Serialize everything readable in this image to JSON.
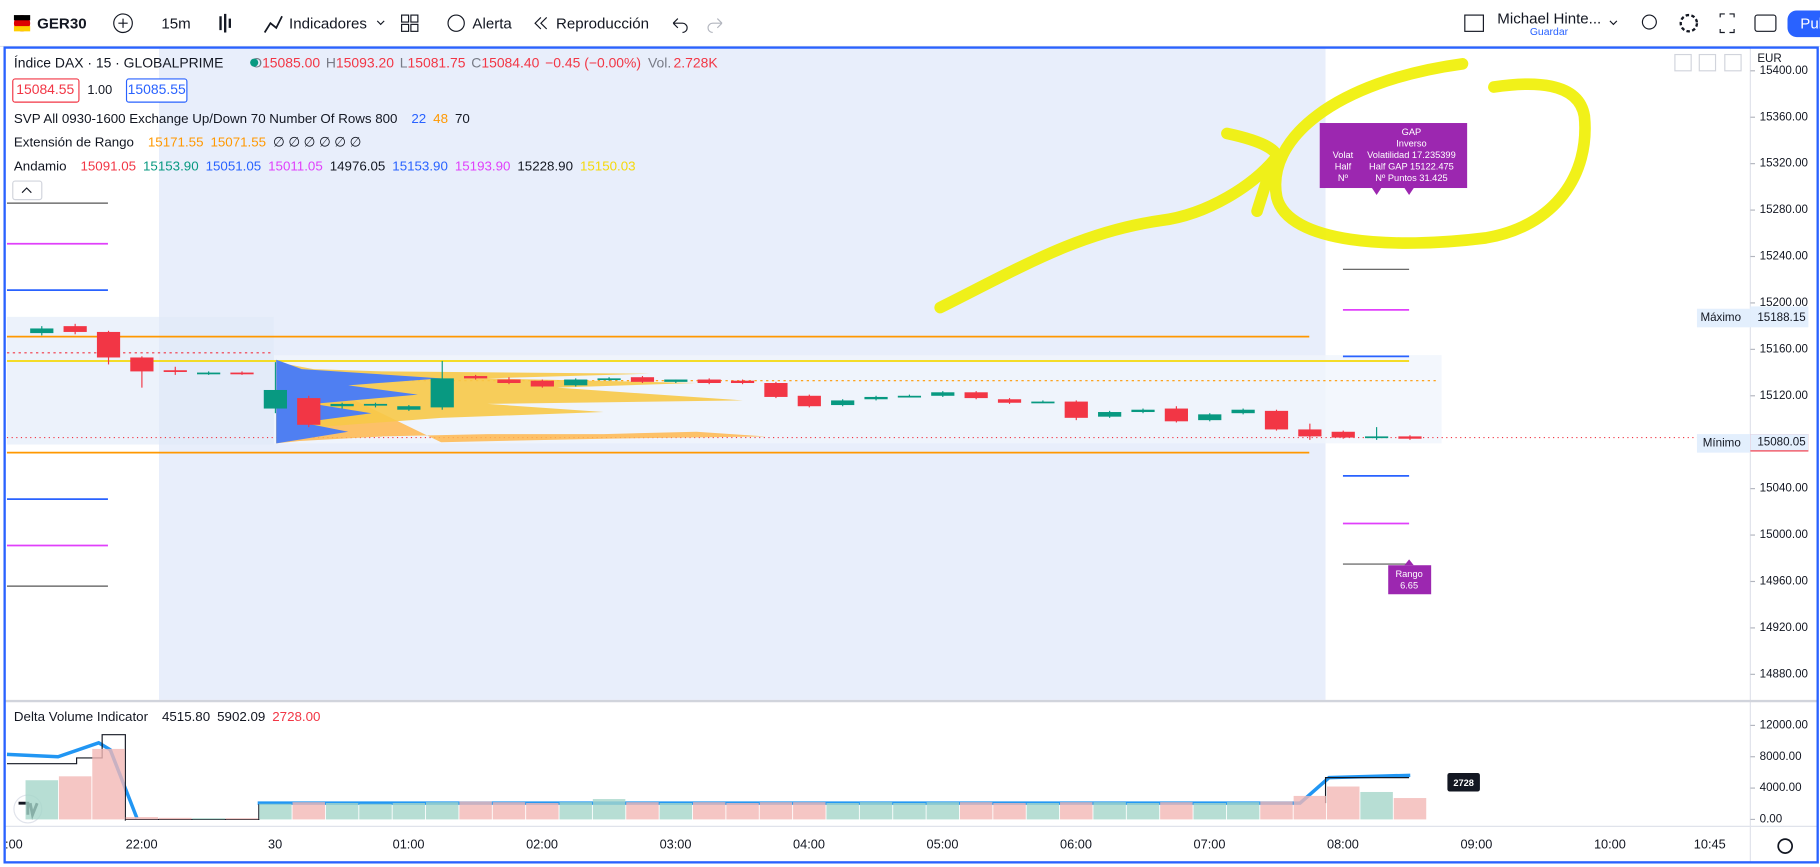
{
  "toolbar": {
    "symbol": "GER30",
    "interval": "15m",
    "indicators": "Indicadores",
    "alert": "Alerta",
    "replay": "Reproducción",
    "user": "Michael Hinte...",
    "save": "Guardar",
    "publish": "Pub"
  },
  "legend": {
    "title": "Índice DAX · 15 · GLOBALPRIME",
    "ohlc": [
      {
        "label": "O",
        "value": "15085.00"
      },
      {
        "label": "H",
        "value": "15093.20"
      },
      {
        "label": "L",
        "value": "15081.75"
      },
      {
        "label": "C",
        "value": "15084.40"
      }
    ],
    "change": "−0.45 (−0.00%)",
    "volume_label": "Vol.",
    "volume": "2.728K",
    "bid": "15084.55",
    "spread": "1.00",
    "ask": "15085.55",
    "svp": {
      "name": "SVP All 0930-1600 Exchange Up/Down 70 Number Of Rows 800",
      "values": [
        {
          "text": "22",
          "color": "#2962ff"
        },
        {
          "text": "48",
          "color": "#ff9800"
        },
        {
          "text": "70",
          "color": "#131722"
        }
      ]
    },
    "range_ext": {
      "name": "Extensión de Rango",
      "values": [
        {
          "text": "15171.55",
          "color": "#ff9800"
        },
        {
          "text": "15071.55",
          "color": "#ff9800"
        },
        {
          "text": "∅ ∅ ∅ ∅ ∅ ∅",
          "color": "#131722"
        }
      ]
    },
    "andamio": {
      "name": "Andamio",
      "values": [
        {
          "text": "15091.05",
          "color": "#f23645"
        },
        {
          "text": "15153.90",
          "color": "#089981"
        },
        {
          "text": "15051.05",
          "color": "#2962ff"
        },
        {
          "text": "15011.05",
          "color": "#e040fb"
        },
        {
          "text": "14976.05",
          "color": "#131722"
        },
        {
          "text": "15153.90",
          "color": "#2962ff"
        },
        {
          "text": "15193.90",
          "color": "#e040fb"
        },
        {
          "text": "15228.90",
          "color": "#131722"
        },
        {
          "text": "15150.03",
          "color": "#f5d90a"
        }
      ]
    }
  },
  "currency": "EUR",
  "price_axis": {
    "ylim": [
      14852,
      15418
    ],
    "yticks": [
      {
        "value": 15400,
        "label": "15400.00"
      },
      {
        "value": 15360,
        "label": "15360.00"
      },
      {
        "value": 15320,
        "label": "15320.00"
      },
      {
        "value": 15280,
        "label": "15280.00"
      },
      {
        "value": 15240,
        "label": "15240.00"
      },
      {
        "value": 15200,
        "label": "15200.00"
      },
      {
        "value": 15160,
        "label": "15160.00"
      },
      {
        "value": 15120,
        "label": "15120.00"
      },
      {
        "value": 15040,
        "label": "15040.00"
      },
      {
        "value": 15000,
        "label": "15000.00"
      },
      {
        "value": 14960,
        "label": "14960.00"
      },
      {
        "value": 14920,
        "label": "14920.00"
      },
      {
        "value": 14880,
        "label": "14880.00"
      }
    ]
  },
  "price_labels": {
    "max_label": "Máximo",
    "max": {
      "value": 15188.15,
      "label": "15188.15"
    },
    "min_label": "Mínimo",
    "min": {
      "value": 15080.05,
      "label": "15080.05"
    }
  },
  "candles": [
    [
      15174,
      15180,
      15172,
      15178
    ],
    [
      15180,
      15182,
      15173,
      15175
    ],
    [
      15175,
      15176,
      15147,
      15153
    ],
    [
      15153,
      15154,
      15127,
      15141
    ],
    [
      15142,
      15145,
      15138,
      15141
    ],
    [
      15139,
      15141,
      15138,
      15140
    ],
    [
      15140,
      15141,
      15138,
      15139
    ],
    [
      15109,
      15149,
      15105,
      15125
    ],
    [
      15118,
      15120,
      15093,
      15095
    ],
    [
      15111,
      15114,
      15109,
      15113
    ],
    [
      15112,
      15114,
      15110,
      15113
    ],
    [
      15108,
      15112,
      15107,
      15111
    ],
    [
      15110,
      15150,
      15108,
      15135
    ],
    [
      15137,
      15138,
      15134,
      15135
    ],
    [
      15134,
      15136,
      15130,
      15131
    ],
    [
      15133,
      15134,
      15127,
      15128
    ],
    [
      15129,
      15135,
      15128,
      15134
    ],
    [
      15134,
      15136,
      15133,
      15135
    ],
    [
      15136,
      15137,
      15131,
      15132
    ],
    [
      15132,
      15134,
      15131,
      15134
    ],
    [
      15134,
      15135,
      15130,
      15131
    ],
    [
      15133,
      15134,
      15130,
      15131
    ],
    [
      15131,
      15132,
      15118,
      15119
    ],
    [
      15120,
      15121,
      15110,
      15111
    ],
    [
      15112,
      15117,
      15111,
      15116
    ],
    [
      15117,
      15120,
      15116,
      15119
    ],
    [
      15120,
      15121,
      15119,
      15120
    ],
    [
      15120,
      15124,
      15119,
      15123
    ],
    [
      15123,
      15124,
      15117,
      15118
    ],
    [
      15117,
      15118,
      15113,
      15114
    ],
    [
      15115,
      15116,
      15114,
      15115
    ],
    [
      15115,
      15116,
      15099,
      15101
    ],
    [
      15102,
      15107,
      15101,
      15106
    ],
    [
      15106,
      15109,
      15105,
      15108
    ],
    [
      15109,
      15111,
      15097,
      15098
    ],
    [
      15099,
      15105,
      15098,
      15104
    ],
    [
      15105,
      15109,
      15104,
      15108
    ],
    [
      15107,
      15108,
      15090,
      15091
    ],
    [
      15091,
      15096,
      15082,
      15085
    ],
    [
      15089,
      15090,
      15083,
      15084
    ],
    [
      15085,
      15093,
      15082,
      15085
    ],
    [
      15085,
      15086,
      15082,
      15083
    ]
  ],
  "volume_pane": {
    "title": "Delta Volume Indicator",
    "values": [
      {
        "text": "4515.80",
        "color": "#131722"
      },
      {
        "text": "5902.09",
        "color": "#131722"
      },
      {
        "text": "2728.00",
        "color": "#f23645"
      }
    ],
    "ylim": [
      0,
      12500
    ],
    "yticks": [
      {
        "value": 12000,
        "label": "12000.00"
      },
      {
        "value": 8000,
        "label": "8000.00"
      },
      {
        "value": 4000,
        "label": "4000.00"
      },
      {
        "value": 0,
        "label": "0.00"
      }
    ],
    "volumes": [
      5000,
      5500,
      9000,
      300,
      200,
      150,
      150,
      2000,
      2200,
      2100,
      2000,
      2100,
      2200,
      2300,
      2200,
      2100,
      2200,
      2600,
      2200,
      2100,
      2200,
      2100,
      2200,
      2200,
      2100,
      2200,
      2100,
      2200,
      2200,
      2100,
      2100,
      2200,
      2200,
      2100,
      2200,
      2100,
      2200,
      2300,
      3000,
      4200,
      3500,
      2728
    ],
    "badge": "2728"
  },
  "annotations": {
    "gap": {
      "lines": [
        "GAP",
        "Inverso",
        "Volatilidad 17.235399",
        "Half GAP 15122.475",
        "Nº Puntos 31.425"
      ],
      "cut": [
        "Volat",
        "Half",
        "Nº"
      ]
    },
    "rango": {
      "label": "Rango",
      "value": "6.65"
    }
  },
  "time_axis": [
    ":00",
    "22:00",
    "30",
    "01:00",
    "02:00",
    "03:00",
    "04:00",
    "05:00",
    "06:00",
    "07:00",
    "08:00",
    "09:00",
    "10:00",
    "10:45"
  ]
}
